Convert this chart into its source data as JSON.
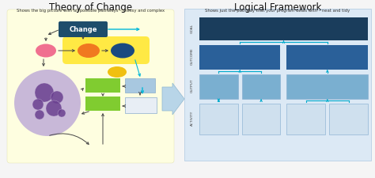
{
  "title_left": "Theory of Change",
  "subtitle_left": "Shows the big picture with all possible pathways – messy and complex",
  "title_right": "Logical Framework",
  "subtitle_right": "Shows just the pathway that your program deals with – neat and tidy",
  "bg_color": "#f5f5f5",
  "left_panel_bg": "#fefee0",
  "right_panel_bg": "#dce9f5",
  "change_box_color": "#1e4d6b",
  "change_text_color": "#ffffff",
  "yellow_group_bg": "#ffe944",
  "orange_ellipse": "#f07820",
  "blue_ellipse": "#1a4a80",
  "pink_ellipse": "#f07090",
  "purple_circle_bg": "#c8b8d8",
  "purple_dark": "#6a4090",
  "yellow_ellipse": "#f0c010",
  "green_rect": "#80cc30",
  "light_blue_rect": "#a8c8e0",
  "white_rect": "#e8eef5",
  "goal_color": "#1a3d5c",
  "outcome_color": "#2a6099",
  "output_color": "#7aafd0",
  "activity_color": "#cfe0ee",
  "teal_arrow": "#00b8d8",
  "dark_arrow": "#444444",
  "tree_line_color": "#00aacc"
}
